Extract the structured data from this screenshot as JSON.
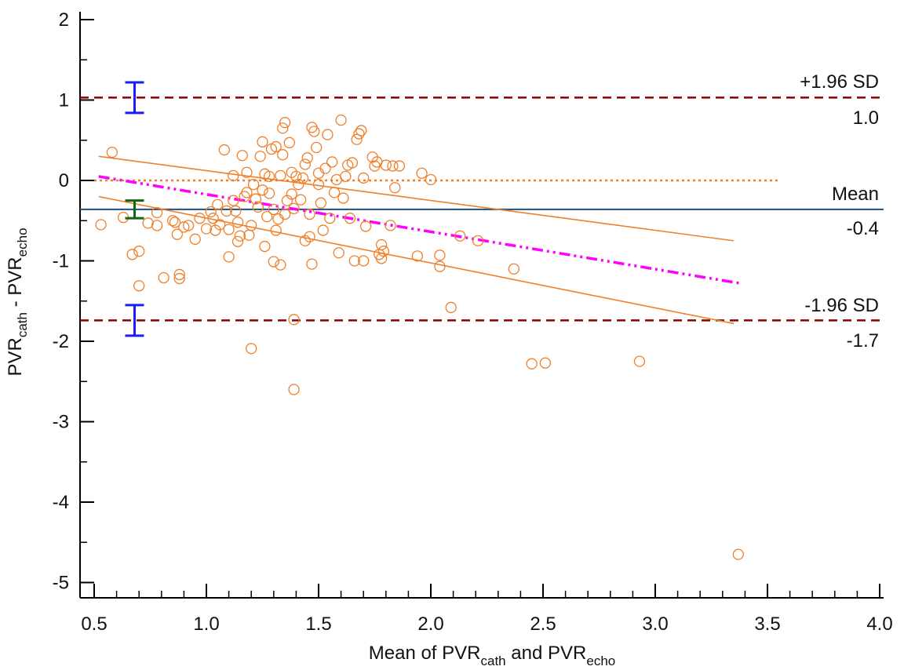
{
  "colors": {
    "points": "#f07f2a",
    "loa": "#8b0000",
    "mean": "#1f4e79",
    "zero": "#f07f2a",
    "regression": "#ff00ff",
    "ci_loa": "#1a1aff",
    "ci_mean": "#116611",
    "conf_band": "#f07f2a"
  },
  "chart_data": {
    "type": "scatter",
    "title": "",
    "xlabel": {
      "main": "Mean of PVR",
      "sub1": "cath",
      "mid": " and PVR",
      "sub2": "echo"
    },
    "ylabel": {
      "main1": "PVR",
      "sub1": "cath",
      "mid": " - PVR",
      "sub2": "echo"
    },
    "xlim": [
      0.4,
      4.0
    ],
    "ylim": [
      -5.2,
      2.1
    ],
    "xticks": [
      0.5,
      1.0,
      1.5,
      2.0,
      2.5,
      3.0,
      3.5,
      4.0
    ],
    "xtick_labels": [
      "0.5",
      "1.0",
      "1.5",
      "2.0",
      "2.5",
      "3.0",
      "3.5",
      "4.0"
    ],
    "yticks": [
      -5,
      -4,
      -3,
      -2,
      -1,
      0,
      1,
      2
    ],
    "ytick_labels": [
      "-5",
      "-4",
      "-3",
      "-2",
      "-1",
      "0",
      "1",
      "2"
    ],
    "grid": false,
    "reference_lines": {
      "upper_loa": {
        "y": 1.03,
        "name": "+1.96 SD",
        "value_label": "1.0"
      },
      "mean": {
        "y": -0.36,
        "name": "Mean",
        "value_label": "-0.4"
      },
      "lower_loa": {
        "y": -1.74,
        "name": "-1.96 SD",
        "value_label": "-1.7"
      },
      "zero": {
        "y": 0.0,
        "x_range": [
          0.5,
          3.55
        ]
      }
    },
    "regression_line": {
      "x": [
        0.52,
        3.38
      ],
      "y": [
        0.05,
        -1.28
      ]
    },
    "confidence_band": {
      "upper": {
        "x": [
          0.52,
          3.35
        ],
        "y": [
          0.3,
          -0.75
        ]
      },
      "lower": {
        "x": [
          0.52,
          3.35
        ],
        "y": [
          -0.2,
          -1.78
        ]
      }
    },
    "ci_bars": [
      {
        "name": "upper-loa-ci",
        "x": 0.68,
        "low": 0.84,
        "high": 1.22
      },
      {
        "name": "mean-ci",
        "x": 0.68,
        "low": -0.47,
        "high": -0.25
      },
      {
        "name": "lower-loa-ci",
        "x": 0.68,
        "low": -1.93,
        "high": -1.55
      }
    ],
    "points": [
      [
        0.53,
        -0.55
      ],
      [
        0.58,
        0.35
      ],
      [
        0.63,
        -0.46
      ],
      [
        0.67,
        -0.92
      ],
      [
        0.7,
        -0.88
      ],
      [
        0.7,
        -1.31
      ],
      [
        0.74,
        -0.53
      ],
      [
        0.78,
        -0.4
      ],
      [
        0.78,
        -0.56
      ],
      [
        0.81,
        -1.21
      ],
      [
        0.85,
        -0.5
      ],
      [
        0.86,
        -0.52
      ],
      [
        0.87,
        -0.67
      ],
      [
        0.88,
        -1.17
      ],
      [
        0.88,
        -1.22
      ],
      [
        0.9,
        -0.58
      ],
      [
        0.92,
        -0.56
      ],
      [
        0.95,
        -0.73
      ],
      [
        0.97,
        -0.47
      ],
      [
        1.0,
        -0.6
      ],
      [
        1.02,
        -0.39
      ],
      [
        1.03,
        -0.47
      ],
      [
        1.04,
        -0.62
      ],
      [
        1.05,
        -0.3
      ],
      [
        1.06,
        -0.55
      ],
      [
        1.08,
        0.38
      ],
      [
        1.09,
        -0.38
      ],
      [
        1.1,
        -0.95
      ],
      [
        1.1,
        -0.61
      ],
      [
        1.12,
        0.06
      ],
      [
        1.12,
        -0.25
      ],
      [
        1.13,
        -0.38
      ],
      [
        1.14,
        -0.52
      ],
      [
        1.14,
        -0.76
      ],
      [
        1.15,
        -0.69
      ],
      [
        1.16,
        0.31
      ],
      [
        1.17,
        -0.2
      ],
      [
        1.18,
        0.1
      ],
      [
        1.18,
        -0.15
      ],
      [
        1.19,
        -0.68
      ],
      [
        1.2,
        -0.56
      ],
      [
        1.2,
        -2.09
      ],
      [
        1.21,
        -0.05
      ],
      [
        1.22,
        -0.23
      ],
      [
        1.23,
        -0.33
      ],
      [
        1.24,
        0.3
      ],
      [
        1.25,
        0.48
      ],
      [
        1.25,
        -0.12
      ],
      [
        1.26,
        0.08
      ],
      [
        1.26,
        -0.82
      ],
      [
        1.27,
        -0.45
      ],
      [
        1.28,
        0.05
      ],
      [
        1.28,
        -0.16
      ],
      [
        1.29,
        0.39
      ],
      [
        1.3,
        -1.01
      ],
      [
        1.3,
        -0.36
      ],
      [
        1.31,
        0.42
      ],
      [
        1.31,
        -0.62
      ],
      [
        1.32,
        -0.48
      ],
      [
        1.33,
        -1.05
      ],
      [
        1.33,
        0.06
      ],
      [
        1.34,
        0.32
      ],
      [
        1.34,
        0.65
      ],
      [
        1.35,
        0.72
      ],
      [
        1.35,
        -0.42
      ],
      [
        1.36,
        -0.25
      ],
      [
        1.37,
        0.47
      ],
      [
        1.38,
        0.1
      ],
      [
        1.38,
        -0.17
      ],
      [
        1.39,
        -0.35
      ],
      [
        1.39,
        -1.73
      ],
      [
        1.39,
        -2.6
      ],
      [
        1.4,
        0.05
      ],
      [
        1.41,
        -0.05
      ],
      [
        1.42,
        -0.24
      ],
      [
        1.43,
        0.03
      ],
      [
        1.44,
        -0.75
      ],
      [
        1.44,
        0.2
      ],
      [
        1.45,
        0.28
      ],
      [
        1.46,
        -0.7
      ],
      [
        1.46,
        -0.42
      ],
      [
        1.47,
        0.66
      ],
      [
        1.47,
        -1.04
      ],
      [
        1.48,
        0.61
      ],
      [
        1.49,
        0.41
      ],
      [
        1.5,
        -0.05
      ],
      [
        1.5,
        0.09
      ],
      [
        1.51,
        -0.28
      ],
      [
        1.52,
        -0.62
      ],
      [
        1.53,
        0.15
      ],
      [
        1.54,
        0.57
      ],
      [
        1.55,
        -0.47
      ],
      [
        1.56,
        0.23
      ],
      [
        1.57,
        -0.15
      ],
      [
        1.58,
        0.01
      ],
      [
        1.59,
        -0.9
      ],
      [
        1.6,
        0.75
      ],
      [
        1.61,
        -0.22
      ],
      [
        1.62,
        0.05
      ],
      [
        1.63,
        0.19
      ],
      [
        1.64,
        -0.47
      ],
      [
        1.65,
        0.22
      ],
      [
        1.66,
        -1.0
      ],
      [
        1.67,
        0.51
      ],
      [
        1.68,
        0.58
      ],
      [
        1.69,
        0.62
      ],
      [
        1.7,
        0.03
      ],
      [
        1.7,
        -1.0
      ],
      [
        1.71,
        -0.57
      ],
      [
        1.74,
        0.29
      ],
      [
        1.75,
        0.18
      ],
      [
        1.76,
        0.23
      ],
      [
        1.77,
        -0.92
      ],
      [
        1.78,
        -0.8
      ],
      [
        1.78,
        -0.97
      ],
      [
        1.79,
        -0.88
      ],
      [
        1.8,
        0.19
      ],
      [
        1.82,
        -0.56
      ],
      [
        1.83,
        0.18
      ],
      [
        1.84,
        -0.09
      ],
      [
        1.86,
        0.18
      ],
      [
        1.94,
        -0.94
      ],
      [
        1.96,
        0.09
      ],
      [
        2.0,
        0.01
      ],
      [
        2.04,
        -1.07
      ],
      [
        2.04,
        -0.93
      ],
      [
        2.09,
        -1.58
      ],
      [
        2.13,
        -0.69
      ],
      [
        2.21,
        -0.75
      ],
      [
        2.37,
        -1.1
      ],
      [
        2.45,
        -2.28
      ],
      [
        2.51,
        -2.27
      ],
      [
        2.93,
        -2.25
      ],
      [
        3.37,
        -4.65
      ]
    ]
  }
}
